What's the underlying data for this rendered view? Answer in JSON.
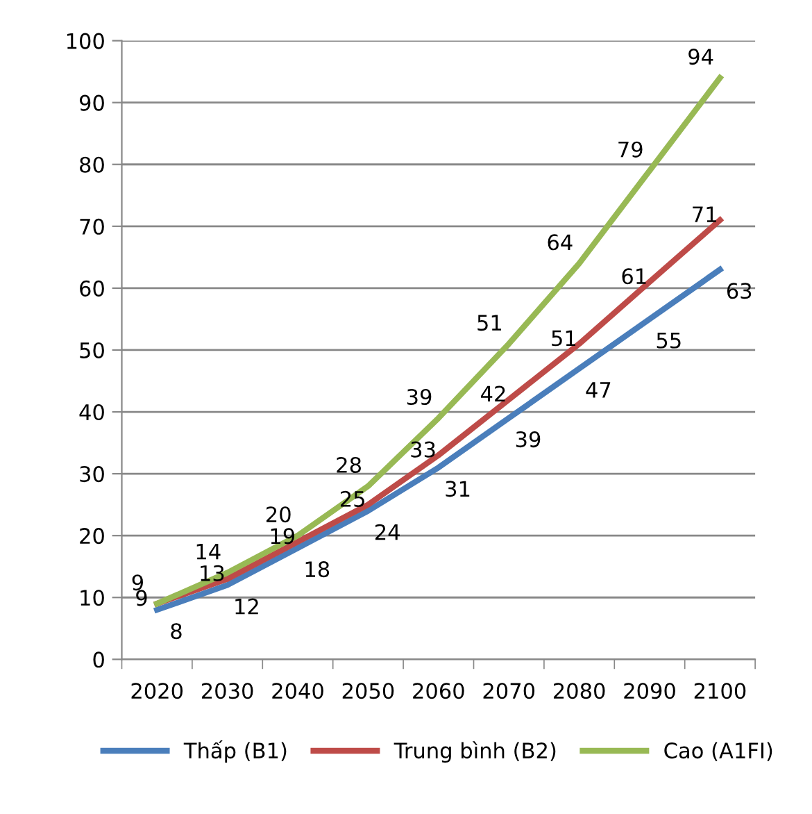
{
  "chart_data": {
    "type": "line",
    "categories": [
      "2020",
      "2030",
      "2040",
      "2050",
      "2060",
      "2070",
      "2080",
      "2090",
      "2100"
    ],
    "series": [
      {
        "name": "Thấp (B1)",
        "color": "#4a7ebb",
        "values": [
          8,
          12,
          18,
          24,
          31,
          39,
          47,
          55,
          63
        ]
      },
      {
        "name": "Trung bình (B2)",
        "color": "#be4b48",
        "values": [
          9,
          13,
          19,
          25,
          33,
          42,
          51,
          61,
          71
        ]
      },
      {
        "name": "Cao (A1FI)",
        "color": "#98b954",
        "values": [
          9,
          14,
          20,
          28,
          39,
          51,
          64,
          79,
          94
        ]
      }
    ],
    "ylim": [
      0,
      100
    ],
    "yticks": [
      0,
      10,
      20,
      30,
      40,
      50,
      60,
      70,
      80,
      90,
      100
    ],
    "grid": "y",
    "legend": "bottom",
    "data_labels": true,
    "marker": "none",
    "line_style": "solid"
  }
}
